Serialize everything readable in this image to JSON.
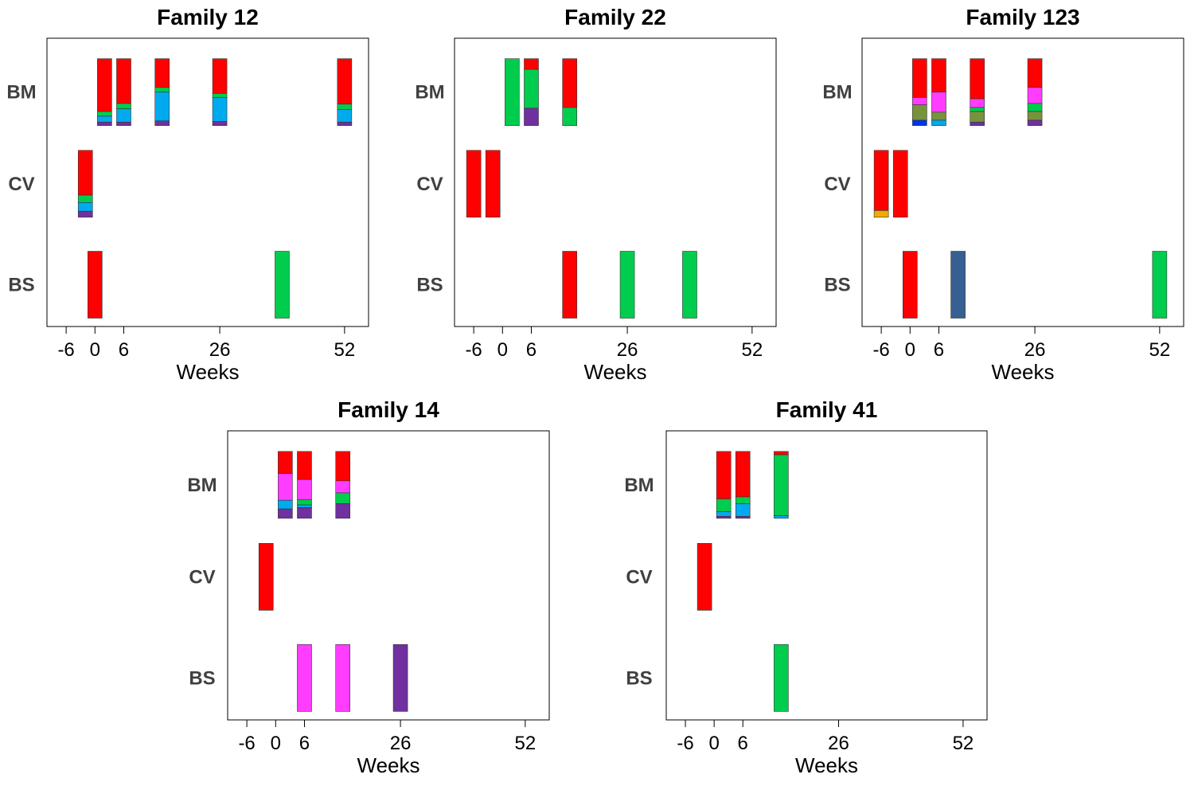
{
  "colors": {
    "red": "#ff0000",
    "green": "#00cc4d",
    "lightblue": "#00aaee",
    "purple": "#7030a0",
    "magenta": "#ff3cff",
    "olive": "#77933c",
    "blue": "#0033ee",
    "orange": "#f0ab00",
    "steel": "#366092"
  },
  "chart_data": [
    {
      "type": "stacked-bar-timeline",
      "title": "Family 12",
      "xlabel": "Weeks",
      "xticks": [
        -6,
        0,
        6,
        26,
        52
      ],
      "xlim": [
        -10,
        57
      ],
      "rows": [
        "BM",
        "CV",
        "BS"
      ],
      "bars": [
        {
          "row": "BM",
          "week": 2,
          "segments": [
            {
              "color": "red",
              "frac": 0.79
            },
            {
              "color": "green",
              "frac": 0.07
            },
            {
              "color": "lightblue",
              "frac": 0.09
            },
            {
              "color": "purple",
              "frac": 0.05
            }
          ]
        },
        {
          "row": "BM",
          "week": 6,
          "segments": [
            {
              "color": "red",
              "frac": 0.67
            },
            {
              "color": "green",
              "frac": 0.08
            },
            {
              "color": "lightblue",
              "frac": 0.2
            },
            {
              "color": "purple",
              "frac": 0.05
            }
          ]
        },
        {
          "row": "BM",
          "week": 14,
          "segments": [
            {
              "color": "red",
              "frac": 0.43
            },
            {
              "color": "green",
              "frac": 0.07
            },
            {
              "color": "lightblue",
              "frac": 0.43
            },
            {
              "color": "purple",
              "frac": 0.07
            }
          ]
        },
        {
          "row": "BM",
          "week": 26,
          "segments": [
            {
              "color": "red",
              "frac": 0.52
            },
            {
              "color": "green",
              "frac": 0.06
            },
            {
              "color": "lightblue",
              "frac": 0.36
            },
            {
              "color": "purple",
              "frac": 0.06
            }
          ]
        },
        {
          "row": "BM",
          "week": 52,
          "segments": [
            {
              "color": "red",
              "frac": 0.68
            },
            {
              "color": "green",
              "frac": 0.08
            },
            {
              "color": "lightblue",
              "frac": 0.19
            },
            {
              "color": "purple",
              "frac": 0.05
            }
          ]
        },
        {
          "row": "CV",
          "week": -2,
          "segments": [
            {
              "color": "red",
              "frac": 0.67
            },
            {
              "color": "green",
              "frac": 0.11
            },
            {
              "color": "lightblue",
              "frac": 0.13
            },
            {
              "color": "purple",
              "frac": 0.09
            }
          ]
        },
        {
          "row": "BS",
          "week": 0,
          "segments": [
            {
              "color": "red",
              "frac": 1
            }
          ]
        },
        {
          "row": "BS",
          "week": 39,
          "segments": [
            {
              "color": "green",
              "frac": 1
            }
          ]
        }
      ]
    },
    {
      "type": "stacked-bar-timeline",
      "title": "Family 22",
      "xlabel": "Weeks",
      "xticks": [
        -6,
        0,
        6,
        26,
        52
      ],
      "xlim": [
        -10,
        57
      ],
      "rows": [
        "BM",
        "CV",
        "BS"
      ],
      "bars": [
        {
          "row": "BM",
          "week": 2,
          "segments": [
            {
              "color": "green",
              "frac": 1
            }
          ]
        },
        {
          "row": "BM",
          "week": 6,
          "segments": [
            {
              "color": "red",
              "frac": 0.16
            },
            {
              "color": "green",
              "frac": 0.58
            },
            {
              "color": "purple",
              "frac": 0.26
            }
          ]
        },
        {
          "row": "BM",
          "week": 14,
          "segments": [
            {
              "color": "red",
              "frac": 0.73
            },
            {
              "color": "green",
              "frac": 0.27
            }
          ]
        },
        {
          "row": "CV",
          "week": -6,
          "segments": [
            {
              "color": "red",
              "frac": 1
            }
          ]
        },
        {
          "row": "CV",
          "week": -2,
          "segments": [
            {
              "color": "red",
              "frac": 1
            }
          ]
        },
        {
          "row": "BS",
          "week": 14,
          "segments": [
            {
              "color": "red",
              "frac": 1
            }
          ]
        },
        {
          "row": "BS",
          "week": 26,
          "segments": [
            {
              "color": "green",
              "frac": 1
            }
          ]
        },
        {
          "row": "BS",
          "week": 39,
          "segments": [
            {
              "color": "green",
              "frac": 1
            }
          ]
        }
      ]
    },
    {
      "type": "stacked-bar-timeline",
      "title": "Family 123",
      "xlabel": "Weeks",
      "xticks": [
        -6,
        0,
        6,
        26,
        52
      ],
      "xlim": [
        -10,
        57
      ],
      "rows": [
        "BM",
        "CV",
        "BS"
      ],
      "bars": [
        {
          "row": "BM",
          "week": 2,
          "segments": [
            {
              "color": "red",
              "frac": 0.58
            },
            {
              "color": "magenta",
              "frac": 0.11
            },
            {
              "color": "olive",
              "frac": 0.23
            },
            {
              "color": "blue",
              "frac": 0.08
            }
          ]
        },
        {
          "row": "BM",
          "week": 6,
          "segments": [
            {
              "color": "red",
              "frac": 0.5
            },
            {
              "color": "magenta",
              "frac": 0.3
            },
            {
              "color": "olive",
              "frac": 0.12
            },
            {
              "color": "lightblue",
              "frac": 0.08
            }
          ]
        },
        {
          "row": "BM",
          "week": 14,
          "segments": [
            {
              "color": "red",
              "frac": 0.6
            },
            {
              "color": "magenta",
              "frac": 0.13
            },
            {
              "color": "green",
              "frac": 0.06
            },
            {
              "color": "olive",
              "frac": 0.16
            },
            {
              "color": "purple",
              "frac": 0.05
            }
          ]
        },
        {
          "row": "BM",
          "week": 26,
          "segments": [
            {
              "color": "red",
              "frac": 0.43
            },
            {
              "color": "magenta",
              "frac": 0.24
            },
            {
              "color": "green",
              "frac": 0.12
            },
            {
              "color": "olive",
              "frac": 0.13
            },
            {
              "color": "purple",
              "frac": 0.08
            }
          ]
        },
        {
          "row": "CV",
          "week": -6,
          "segments": [
            {
              "color": "red",
              "frac": 0.9
            },
            {
              "color": "orange",
              "frac": 0.1
            }
          ]
        },
        {
          "row": "CV",
          "week": -2,
          "segments": [
            {
              "color": "red",
              "frac": 1
            }
          ]
        },
        {
          "row": "BS",
          "week": 0,
          "segments": [
            {
              "color": "red",
              "frac": 1
            }
          ]
        },
        {
          "row": "BS",
          "week": 10,
          "segments": [
            {
              "color": "steel",
              "frac": 1
            }
          ]
        },
        {
          "row": "BS",
          "week": 52,
          "segments": [
            {
              "color": "green",
              "frac": 1
            }
          ]
        }
      ]
    },
    {
      "type": "stacked-bar-timeline",
      "title": "Family 14",
      "xlabel": "Weeks",
      "xticks": [
        -6,
        0,
        6,
        26,
        52
      ],
      "xlim": [
        -10,
        57
      ],
      "rows": [
        "BM",
        "CV",
        "BS"
      ],
      "bars": [
        {
          "row": "BM",
          "week": 2,
          "segments": [
            {
              "color": "red",
              "frac": 0.33
            },
            {
              "color": "magenta",
              "frac": 0.4
            },
            {
              "color": "lightblue",
              "frac": 0.13
            },
            {
              "color": "purple",
              "frac": 0.14
            }
          ]
        },
        {
          "row": "BM",
          "week": 6,
          "segments": [
            {
              "color": "red",
              "frac": 0.42
            },
            {
              "color": "magenta",
              "frac": 0.3
            },
            {
              "color": "green",
              "frac": 0.08
            },
            {
              "color": "lightblue",
              "frac": 0.04
            },
            {
              "color": "purple",
              "frac": 0.16
            }
          ]
        },
        {
          "row": "BM",
          "week": 14,
          "segments": [
            {
              "color": "red",
              "frac": 0.44
            },
            {
              "color": "magenta",
              "frac": 0.18
            },
            {
              "color": "green",
              "frac": 0.16
            },
            {
              "color": "purple",
              "frac": 0.22
            }
          ]
        },
        {
          "row": "CV",
          "week": -2,
          "segments": [
            {
              "color": "red",
              "frac": 1
            }
          ]
        },
        {
          "row": "BS",
          "week": 6,
          "segments": [
            {
              "color": "magenta",
              "frac": 1
            }
          ]
        },
        {
          "row": "BS",
          "week": 14,
          "segments": [
            {
              "color": "magenta",
              "frac": 1
            }
          ]
        },
        {
          "row": "BS",
          "week": 26,
          "segments": [
            {
              "color": "purple",
              "frac": 1
            }
          ]
        }
      ]
    },
    {
      "type": "stacked-bar-timeline",
      "title": "Family 41",
      "xlabel": "Weeks",
      "xticks": [
        -6,
        0,
        6,
        26,
        52
      ],
      "xlim": [
        -10,
        57
      ],
      "rows": [
        "BM",
        "CV",
        "BS"
      ],
      "bars": [
        {
          "row": "BM",
          "week": 2,
          "segments": [
            {
              "color": "red",
              "frac": 0.71
            },
            {
              "color": "green",
              "frac": 0.19
            },
            {
              "color": "lightblue",
              "frac": 0.07
            },
            {
              "color": "purple",
              "frac": 0.03
            }
          ]
        },
        {
          "row": "BM",
          "week": 6,
          "segments": [
            {
              "color": "red",
              "frac": 0.68
            },
            {
              "color": "green",
              "frac": 0.1
            },
            {
              "color": "lightblue",
              "frac": 0.19
            },
            {
              "color": "purple",
              "frac": 0.03
            }
          ]
        },
        {
          "row": "BM",
          "week": 14,
          "segments": [
            {
              "color": "red",
              "frac": 0.05
            },
            {
              "color": "green",
              "frac": 0.91
            },
            {
              "color": "lightblue",
              "frac": 0.04
            }
          ]
        },
        {
          "row": "CV",
          "week": -2,
          "segments": [
            {
              "color": "red",
              "frac": 1
            }
          ]
        },
        {
          "row": "BS",
          "week": 14,
          "segments": [
            {
              "color": "green",
              "frac": 1
            }
          ]
        }
      ]
    }
  ]
}
